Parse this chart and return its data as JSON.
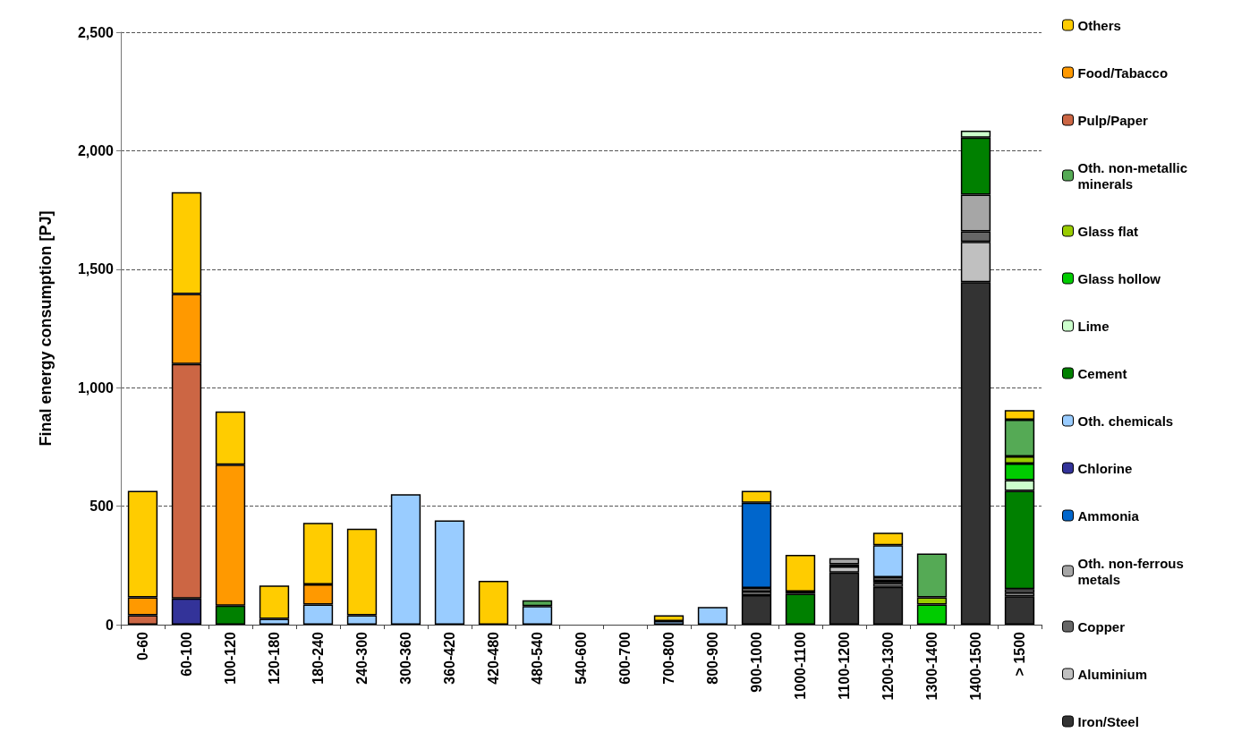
{
  "chart_data": {
    "type": "bar",
    "stacked": true,
    "ylabel": "Final energy consumption [PJ]",
    "categories": [
      "0-60",
      "60-100",
      "100-120",
      "120-180",
      "180-240",
      "240-300",
      "300-360",
      "360-420",
      "420-480",
      "480-540",
      "540-600",
      "600-700",
      "700-800",
      "800-900",
      "900-1000",
      "1000-1100",
      "1100-1200",
      "1200-1300",
      "1300-1400",
      "1400-1500",
      "> 1500"
    ],
    "ylim": [
      0,
      2500
    ],
    "yticks": [
      0,
      {
        "value": 500,
        "label": "500"
      },
      {
        "value": 1000,
        "label": "1,000"
      },
      {
        "value": 1500,
        "label": "1,500"
      },
      {
        "value": 2000,
        "label": "2,000"
      },
      {
        "value": 2500,
        "label": "2,500"
      }
    ],
    "grid": "y",
    "legend": "right",
    "series": [
      {
        "name": "Iron/Steel",
        "color": "#333333",
        "values": [
          null,
          null,
          null,
          null,
          null,
          null,
          null,
          null,
          null,
          null,
          null,
          null,
          null,
          null,
          125,
          null,
          220,
          160,
          null,
          1445,
          120
        ]
      },
      {
        "name": "Aluminium",
        "color": "#c0c0c0",
        "values": [
          null,
          null,
          null,
          null,
          null,
          null,
          null,
          null,
          null,
          null,
          null,
          null,
          null,
          null,
          15,
          null,
          25,
          15,
          null,
          170,
          15
        ]
      },
      {
        "name": "Copper",
        "color": "#666666",
        "values": [
          null,
          null,
          null,
          null,
          null,
          null,
          null,
          null,
          null,
          null,
          null,
          null,
          null,
          null,
          null,
          null,
          10,
          10,
          null,
          45,
          null
        ]
      },
      {
        "name": "Oth. non-ferrous metals",
        "color": "#a6a6a6",
        "values": [
          null,
          null,
          null,
          null,
          null,
          null,
          null,
          null,
          null,
          null,
          null,
          null,
          null,
          null,
          15,
          null,
          25,
          15,
          null,
          155,
          15
        ]
      },
      {
        "name": "Ammonia",
        "color": "#0066cc",
        "values": [
          null,
          null,
          null,
          null,
          null,
          null,
          null,
          null,
          null,
          null,
          null,
          null,
          null,
          null,
          360,
          null,
          null,
          null,
          null,
          null,
          null
        ]
      },
      {
        "name": "Chlorine",
        "color": "#333399",
        "values": [
          null,
          110,
          null,
          null,
          null,
          null,
          null,
          null,
          null,
          null,
          null,
          null,
          null,
          null,
          null,
          null,
          null,
          null,
          null,
          null,
          null
        ]
      },
      {
        "name": "Oth. chemicals",
        "color": "#99ccff",
        "values": [
          null,
          null,
          null,
          25,
          85,
          40,
          550,
          440,
          null,
          78,
          null,
          null,
          15,
          75,
          null,
          null,
          null,
          135,
          null,
          null,
          null
        ]
      },
      {
        "name": "Cement",
        "color": "#008000",
        "values": [
          null,
          null,
          80,
          null,
          null,
          null,
          null,
          null,
          null,
          null,
          null,
          null,
          null,
          null,
          null,
          130,
          null,
          null,
          null,
          240,
          415
        ]
      },
      {
        "name": "Lime",
        "color": "#ccffcc",
        "values": [
          null,
          null,
          null,
          null,
          null,
          null,
          null,
          null,
          null,
          null,
          null,
          null,
          null,
          null,
          null,
          10,
          null,
          null,
          null,
          30,
          45
        ]
      },
      {
        "name": "Glass hollow",
        "color": "#00cc00",
        "values": [
          null,
          null,
          null,
          null,
          null,
          null,
          null,
          null,
          null,
          null,
          null,
          null,
          null,
          null,
          null,
          null,
          null,
          null,
          85,
          null,
          70
        ]
      },
      {
        "name": "Glass flat",
        "color": "#99cc00",
        "values": [
          null,
          null,
          null,
          null,
          null,
          null,
          null,
          null,
          null,
          null,
          null,
          null,
          null,
          null,
          null,
          null,
          null,
          null,
          30,
          null,
          30
        ]
      },
      {
        "name": "Oth. non-metallic minerals",
        "color": "#55aa55",
        "values": [
          null,
          null,
          null,
          null,
          null,
          null,
          null,
          null,
          null,
          25,
          null,
          null,
          null,
          null,
          null,
          null,
          null,
          null,
          185,
          null,
          155
        ]
      },
      {
        "name": "Pulp/Paper",
        "color": "#cc6644",
        "values": [
          40,
          990,
          null,
          null,
          null,
          null,
          null,
          null,
          null,
          null,
          null,
          null,
          null,
          null,
          null,
          null,
          null,
          null,
          null,
          null,
          null
        ]
      },
      {
        "name": "Food/Tabacco",
        "color": "#ff9900",
        "values": [
          75,
          295,
          595,
          null,
          85,
          null,
          null,
          null,
          null,
          null,
          null,
          null,
          null,
          null,
          null,
          null,
          null,
          null,
          null,
          null,
          null
        ]
      },
      {
        "name": "Others",
        "color": "#ffcc00",
        "values": [
          450,
          430,
          225,
          140,
          260,
          365,
          null,
          null,
          185,
          null,
          null,
          null,
          25,
          null,
          50,
          155,
          null,
          53,
          null,
          null,
          40
        ]
      }
    ]
  }
}
